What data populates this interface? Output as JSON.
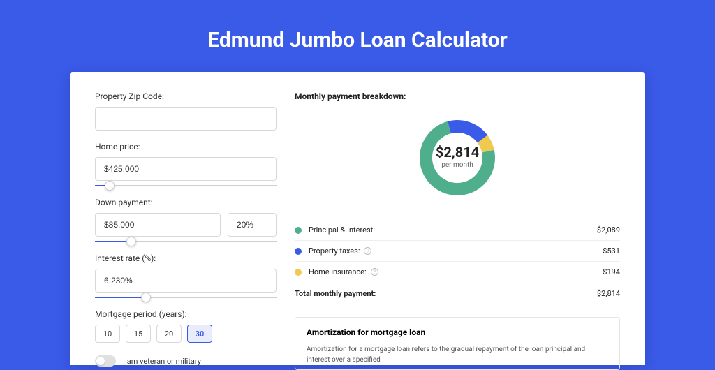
{
  "page": {
    "title": "Edmund Jumbo Loan Calculator",
    "background_color": "#3a5ae8",
    "card_background": "#ffffff"
  },
  "form": {
    "zip": {
      "label": "Property Zip Code:",
      "value": ""
    },
    "home_price": {
      "label": "Home price:",
      "value": "$425,000",
      "slider_percent": 8
    },
    "down_payment": {
      "label": "Down payment:",
      "value": "$85,000",
      "pct": "20%",
      "slider_percent": 20
    },
    "interest": {
      "label": "Interest rate (%):",
      "value": "6.230%",
      "slider_percent": 28
    },
    "period": {
      "label": "Mortgage period (years):",
      "options": [
        "10",
        "15",
        "20",
        "30"
      ],
      "selected": "30"
    },
    "veteran": {
      "label": "I am veteran or military",
      "checked": false
    }
  },
  "breakdown": {
    "title": "Monthly payment breakdown:",
    "center_amount": "$2,814",
    "center_sub": "per month",
    "donut": {
      "segments": [
        {
          "label": "Principal & Interest",
          "value": 2089,
          "color": "#4fae8b",
          "percent": 74.2
        },
        {
          "label": "Property taxes",
          "value": 531,
          "color": "#3a5ae8",
          "percent": 18.9
        },
        {
          "label": "Home insurance",
          "value": 194,
          "color": "#f0c94f",
          "percent": 6.9
        }
      ],
      "thickness": 18,
      "radius": 54
    },
    "rows": [
      {
        "label": "Principal & Interest:",
        "value": "$2,089",
        "color": "#4fae8b",
        "info": false
      },
      {
        "label": "Property taxes:",
        "value": "$531",
        "color": "#3a5ae8",
        "info": true
      },
      {
        "label": "Home insurance:",
        "value": "$194",
        "color": "#f0c94f",
        "info": true
      }
    ],
    "total": {
      "label": "Total monthly payment:",
      "value": "$2,814"
    }
  },
  "amortization": {
    "title": "Amortization for mortgage loan",
    "text": "Amortization for a mortgage loan refers to the gradual repayment of the loan principal and interest over a specified"
  }
}
